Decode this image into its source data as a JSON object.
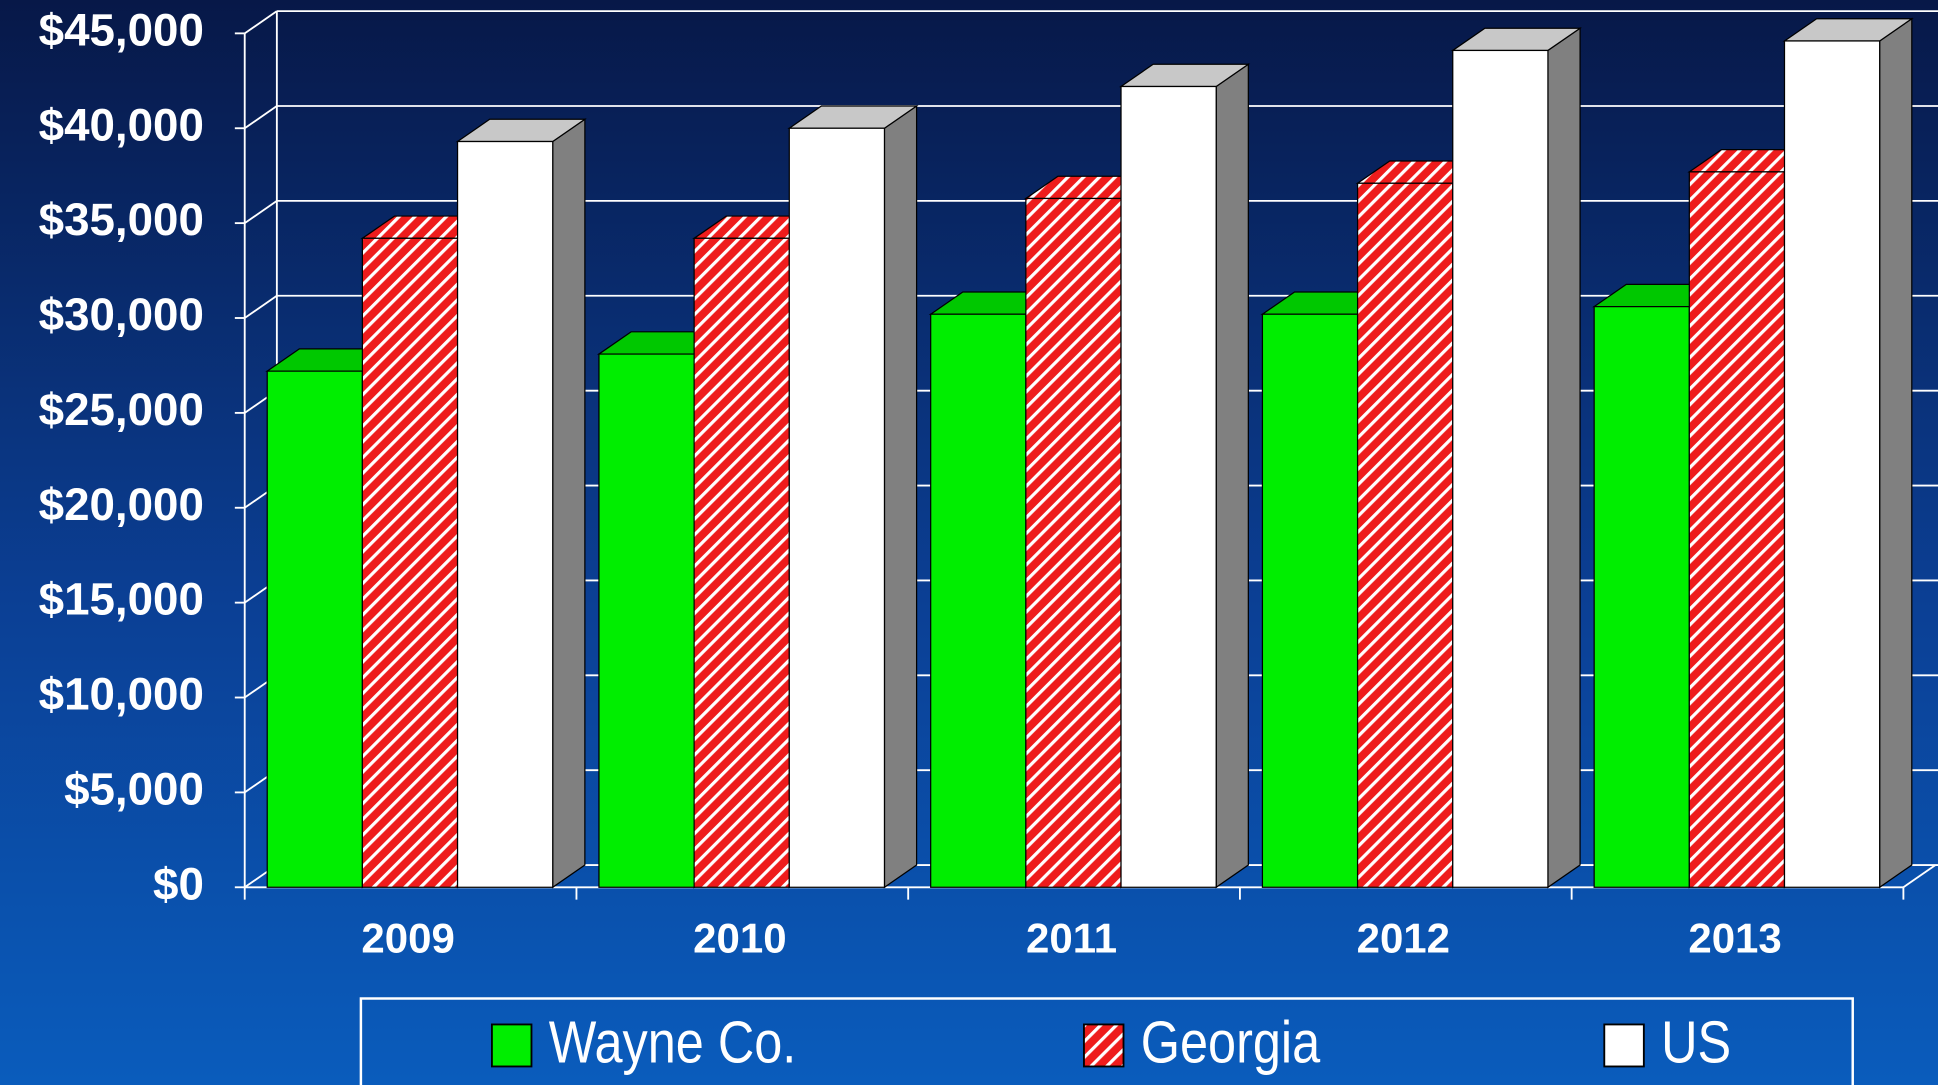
{
  "chart_data": {
    "type": "bar3d",
    "categories": [
      "2009",
      "2010",
      "2011",
      "2012",
      "2013"
    ],
    "series": [
      {
        "name": "Wayne Co.",
        "color": "#00ee00",
        "values": [
          27200,
          28100,
          30200,
          30200,
          30600
        ]
      },
      {
        "name": "Georgia",
        "color": "#ee1c1c",
        "values": [
          34200,
          34200,
          36300,
          37100,
          37700
        ]
      },
      {
        "name": "US",
        "color": "#ffffff",
        "values": [
          39300,
          40000,
          42200,
          44100,
          44600
        ]
      }
    ],
    "ylim": [
      0,
      45000
    ],
    "yticks": [
      {
        "value": 0,
        "label": "$0"
      },
      {
        "value": 5000,
        "label": "$5,000"
      },
      {
        "value": 10000,
        "label": "$10,000"
      },
      {
        "value": 15000,
        "label": "$15,000"
      },
      {
        "value": 20000,
        "label": "$20,000"
      },
      {
        "value": 25000,
        "label": "$25,000"
      },
      {
        "value": 30000,
        "label": "$30,000"
      },
      {
        "value": 35000,
        "label": "$35,000"
      },
      {
        "value": 40000,
        "label": "$40,000"
      },
      {
        "value": 45000,
        "label": "$45,000"
      }
    ],
    "grid": true,
    "legend": "bottom"
  }
}
